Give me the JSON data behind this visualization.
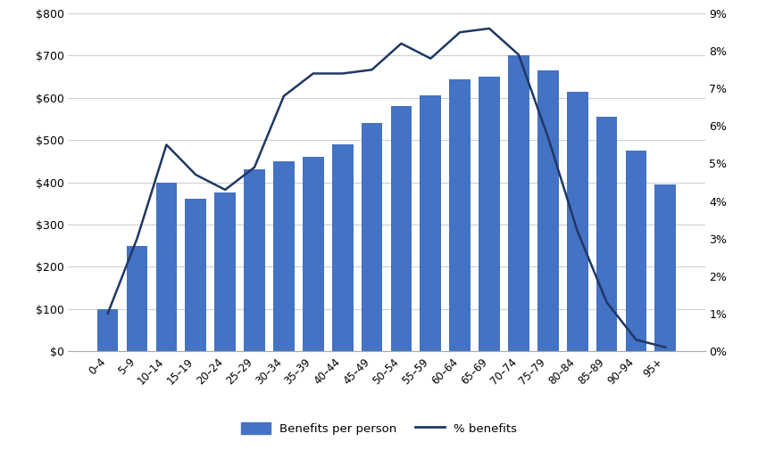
{
  "categories": [
    "0–4",
    "5–9",
    "10–14",
    "15–19",
    "20–24",
    "25–29",
    "30–34",
    "35–39",
    "40–44",
    "45–49",
    "50–54",
    "55–59",
    "60–64",
    "65–69",
    "70–74",
    "75–79",
    "80–84",
    "85–89",
    "90–94",
    "95+"
  ],
  "bar_values": [
    100,
    250,
    400,
    360,
    375,
    430,
    450,
    460,
    490,
    540,
    580,
    605,
    645,
    650,
    700,
    665,
    615,
    555,
    475,
    395
  ],
  "line_values": [
    0.01,
    0.03,
    0.055,
    0.047,
    0.043,
    0.049,
    0.068,
    0.074,
    0.074,
    0.075,
    0.082,
    0.078,
    0.085,
    0.086,
    0.079,
    0.057,
    0.032,
    0.013,
    0.003,
    0.001
  ],
  "bar_color": "#4472C4",
  "line_color": "#1F3864",
  "bar_label": "Benefits per person",
  "line_label": "% benefits",
  "ylim_left": [
    0,
    800
  ],
  "ylim_right": [
    0,
    0.09
  ],
  "yticks_left": [
    0,
    100,
    200,
    300,
    400,
    500,
    600,
    700,
    800
  ],
  "yticks_right": [
    0.0,
    0.01,
    0.02,
    0.03,
    0.04,
    0.05,
    0.06,
    0.07,
    0.08,
    0.09
  ],
  "background_color": "#ffffff",
  "grid_color": "#d0d0d0",
  "figsize": [
    8.49,
    5.05
  ],
  "dpi": 100
}
